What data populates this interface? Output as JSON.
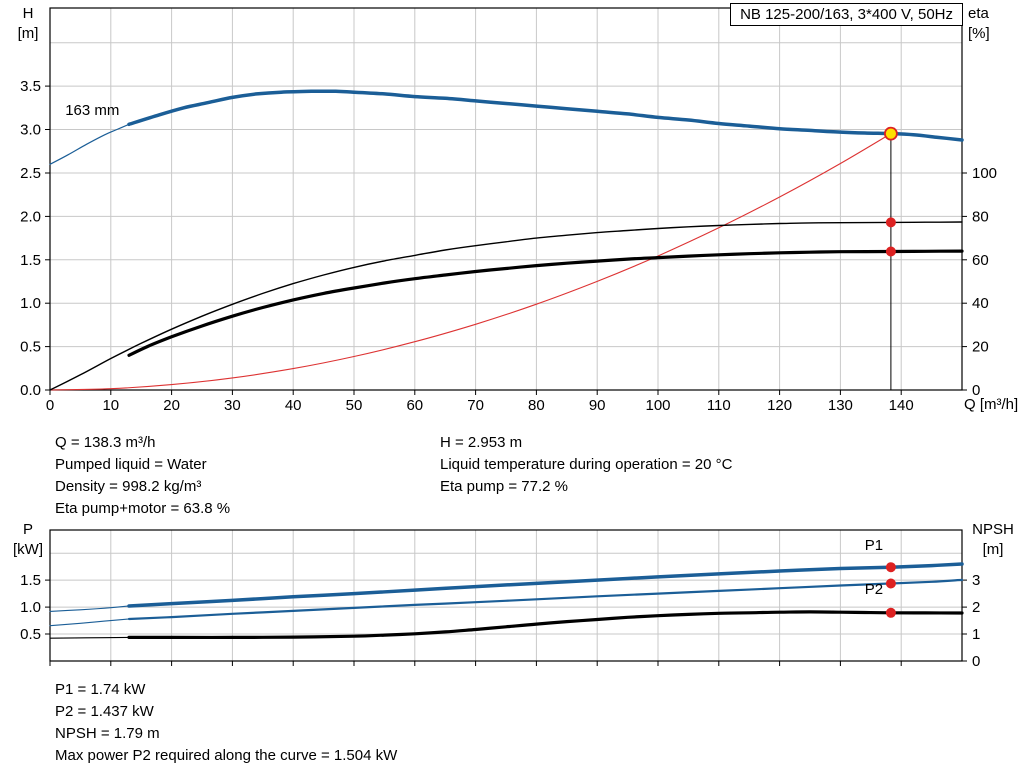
{
  "page": {
    "background": "#ffffff"
  },
  "colors": {
    "curve_blue": "#1b5e97",
    "marker_red": "#dd2222",
    "duty_yellow": "#ffe000"
  },
  "chart_data": [
    {
      "id": "hq-eta-chart",
      "type": "line",
      "title_box": "NB 125-200/163, 3*400 V, 50Hz",
      "x": {
        "min": 0,
        "max": 150,
        "ticks": [
          0,
          10,
          20,
          30,
          40,
          50,
          60,
          70,
          80,
          90,
          100,
          110,
          120,
          130,
          140
        ],
        "show_labels": true,
        "label": "Q [m³/h]"
      },
      "y_left": {
        "min": 0,
        "max": 4.4,
        "grid_step": 0.5,
        "symbol": "H",
        "unit": "[m]",
        "ticks": [
          {
            "v": 0,
            "t": "0.0"
          },
          {
            "v": 0.5,
            "t": "0.5"
          },
          {
            "v": 1,
            "t": "1.0"
          },
          {
            "v": 1.5,
            "t": "1.5"
          },
          {
            "v": 2,
            "t": "2.0"
          },
          {
            "v": 2.5,
            "t": "2.5"
          },
          {
            "v": 3,
            "t": "3.0"
          },
          {
            "v": 3.5,
            "t": "3.5"
          }
        ]
      },
      "y_right": {
        "min": 0,
        "max": 176,
        "symbol": "eta",
        "unit": "[%]",
        "ticks": [
          {
            "v": 0,
            "t": "0"
          },
          {
            "v": 20,
            "t": "20"
          },
          {
            "v": 40,
            "t": "40"
          },
          {
            "v": 60,
            "t": "60"
          },
          {
            "v": 80,
            "t": "80"
          },
          {
            "v": 100,
            "t": "100"
          }
        ]
      },
      "series": [
        {
          "name": "pump-curve-lead-thin",
          "axis": "left",
          "color": "#1b5e97",
          "width": 1.2,
          "points": [
            [
              0,
              2.6
            ],
            [
              3,
              2.71
            ],
            [
              6,
              2.83
            ],
            [
              9,
              2.94
            ],
            [
              11,
              3.0
            ],
            [
              13,
              3.06
            ]
          ]
        },
        {
          "name": "system-curve",
          "axis": "left",
          "color": "#dd3333",
          "width": 1.1,
          "points": [
            [
              0,
              0
            ],
            [
              10,
              0.015
            ],
            [
              20,
              0.062
            ],
            [
              30,
              0.139
            ],
            [
              40,
              0.247
            ],
            [
              50,
              0.386
            ],
            [
              60,
              0.556
            ],
            [
              70,
              0.757
            ],
            [
              80,
              0.988
            ],
            [
              90,
              1.251
            ],
            [
              100,
              1.544
            ],
            [
              110,
              1.868
            ],
            [
              120,
              2.223
            ],
            [
              130,
              2.609
            ],
            [
              138.3,
              2.953
            ]
          ]
        },
        {
          "name": "pump-curve-163mm",
          "axis": "left",
          "color": "#1b5e97",
          "width": 3.5,
          "points": [
            [
              13,
              3.06
            ],
            [
              18,
              3.17
            ],
            [
              22,
              3.25
            ],
            [
              26,
              3.31
            ],
            [
              30,
              3.37
            ],
            [
              34,
              3.41
            ],
            [
              38,
              3.43
            ],
            [
              43,
              3.44
            ],
            [
              47,
              3.44
            ],
            [
              50,
              3.43
            ],
            [
              55,
              3.41
            ],
            [
              60,
              3.38
            ],
            [
              65,
              3.36
            ],
            [
              70,
              3.33
            ],
            [
              75,
              3.3
            ],
            [
              80,
              3.27
            ],
            [
              85,
              3.24
            ],
            [
              90,
              3.21
            ],
            [
              95,
              3.18
            ],
            [
              100,
              3.14
            ],
            [
              105,
              3.11
            ],
            [
              110,
              3.07
            ],
            [
              115,
              3.04
            ],
            [
              120,
              3.01
            ],
            [
              125,
              2.99
            ],
            [
              130,
              2.97
            ],
            [
              134,
              2.96
            ],
            [
              138.3,
              2.953
            ],
            [
              142,
              2.94
            ],
            [
              146,
              2.91
            ],
            [
              150,
              2.88
            ]
          ]
        },
        {
          "name": "eta-pump-curve",
          "axis": "right",
          "color": "#000000",
          "width": 1.4,
          "points": [
            [
              0,
              0
            ],
            [
              5,
              7
            ],
            [
              10,
              14.5
            ],
            [
              15,
              21.5
            ],
            [
              20,
              28
            ],
            [
              25,
              34
            ],
            [
              30,
              39.5
            ],
            [
              35,
              44.5
            ],
            [
              40,
              49
            ],
            [
              45,
              53
            ],
            [
              50,
              56.5
            ],
            [
              55,
              59.5
            ],
            [
              60,
              62
            ],
            [
              65,
              64.5
            ],
            [
              70,
              66.5
            ],
            [
              75,
              68.3
            ],
            [
              80,
              70
            ],
            [
              85,
              71.3
            ],
            [
              90,
              72.5
            ],
            [
              95,
              73.5
            ],
            [
              100,
              74.4
            ],
            [
              105,
              75.2
            ],
            [
              110,
              75.8
            ],
            [
              115,
              76.3
            ],
            [
              120,
              76.7
            ],
            [
              125,
              77.0
            ],
            [
              130,
              77.1
            ],
            [
              138.3,
              77.2
            ],
            [
              144,
              77.3
            ],
            [
              150,
              77.4
            ]
          ]
        },
        {
          "name": "eta-pump-motor-curve",
          "axis": "right",
          "color": "#000000",
          "width": 3.2,
          "points": [
            [
              13,
              16
            ],
            [
              16,
              20
            ],
            [
              20,
              24.5
            ],
            [
              25,
              29.5
            ],
            [
              30,
              34
            ],
            [
              35,
              38
            ],
            [
              40,
              41.5
            ],
            [
              45,
              44.5
            ],
            [
              50,
              47
            ],
            [
              55,
              49.3
            ],
            [
              60,
              51.3
            ],
            [
              65,
              53
            ],
            [
              70,
              54.6
            ],
            [
              75,
              56
            ],
            [
              80,
              57.3
            ],
            [
              85,
              58.4
            ],
            [
              90,
              59.4
            ],
            [
              95,
              60.3
            ],
            [
              100,
              61
            ],
            [
              105,
              61.7
            ],
            [
              110,
              62.3
            ],
            [
              115,
              62.8
            ],
            [
              120,
              63.2
            ],
            [
              125,
              63.5
            ],
            [
              130,
              63.7
            ],
            [
              138.3,
              63.8
            ],
            [
              144,
              63.9
            ],
            [
              150,
              64
            ]
          ]
        }
      ],
      "duty_line": {
        "q": 138.3,
        "to_value": 2.953,
        "axis": "left",
        "color": "#000000"
      },
      "markers": [
        {
          "name": "eta-pump-marker",
          "axis": "right",
          "q": 138.3,
          "value": 77.2,
          "r": 4.5,
          "fill": "#dd2222"
        },
        {
          "name": "eta-pump-motor-marker",
          "axis": "right",
          "q": 138.3,
          "value": 63.8,
          "r": 4.5,
          "fill": "#dd2222"
        },
        {
          "name": "duty-point-marker",
          "axis": "left",
          "q": 138.3,
          "value": 2.953,
          "r": 6,
          "fill": "#ffe000",
          "stroke": "#dd2222",
          "stroke_width": 1.8
        }
      ],
      "annotations": [
        {
          "name": "impeller-diameter-label",
          "text": "163 mm",
          "q": 2.5,
          "value": 3.17,
          "axis": "left",
          "color": "#000000"
        }
      ]
    },
    {
      "id": "p-npsh-chart",
      "type": "line",
      "x": {
        "min": 0,
        "max": 150,
        "ticks": [
          0,
          10,
          20,
          30,
          40,
          50,
          60,
          70,
          80,
          90,
          100,
          110,
          120,
          130,
          140
        ],
        "show_labels": false,
        "label": ""
      },
      "y_left": {
        "min": 0,
        "max": 2.43,
        "grid_step": 0.5,
        "symbol": "P",
        "unit": "[kW]",
        "ticks": [
          {
            "v": 0.5,
            "t": "0.5"
          },
          {
            "v": 1,
            "t": "1.0"
          },
          {
            "v": 1.5,
            "t": "1.5"
          }
        ]
      },
      "y_right": {
        "min": 0,
        "max": 4.86,
        "symbol": "NPSH",
        "unit": "[m]",
        "ticks": [
          {
            "v": 0,
            "t": "0"
          },
          {
            "v": 1,
            "t": "1"
          },
          {
            "v": 2,
            "t": "2"
          },
          {
            "v": 3,
            "t": "3"
          }
        ]
      },
      "series": [
        {
          "name": "p1-curve-lead-thin",
          "axis": "left",
          "color": "#1b5e97",
          "width": 1.1,
          "points": [
            [
              0,
              0.92
            ],
            [
              5,
              0.95
            ],
            [
              9,
              0.98
            ],
            [
              13,
              1.02
            ]
          ]
        },
        {
          "name": "p2-curve-lead-thin",
          "axis": "left",
          "color": "#1b5e97",
          "width": 1.1,
          "points": [
            [
              0,
              0.655
            ],
            [
              5,
              0.7
            ],
            [
              9,
              0.74
            ],
            [
              13,
              0.78
            ]
          ]
        },
        {
          "name": "npsh-curve-lead-thin",
          "axis": "right",
          "color": "#000000",
          "width": 1.1,
          "points": [
            [
              0,
              0.845
            ],
            [
              6,
              0.86
            ],
            [
              13,
              0.875
            ]
          ]
        },
        {
          "name": "p1-curve",
          "axis": "left",
          "color": "#1b5e97",
          "width": 3.5,
          "points": [
            [
              13,
              1.02
            ],
            [
              20,
              1.065
            ],
            [
              30,
              1.125
            ],
            [
              40,
              1.19
            ],
            [
              50,
              1.25
            ],
            [
              60,
              1.315
            ],
            [
              70,
              1.38
            ],
            [
              80,
              1.44
            ],
            [
              90,
              1.5
            ],
            [
              100,
              1.56
            ],
            [
              110,
              1.615
            ],
            [
              120,
              1.67
            ],
            [
              130,
              1.715
            ],
            [
              138.3,
              1.74
            ],
            [
              145,
              1.77
            ],
            [
              150,
              1.8
            ]
          ]
        },
        {
          "name": "p2-curve",
          "axis": "left",
          "color": "#1b5e97",
          "width": 2.2,
          "points": [
            [
              13,
              0.78
            ],
            [
              20,
              0.815
            ],
            [
              30,
              0.875
            ],
            [
              40,
              0.93
            ],
            [
              50,
              0.985
            ],
            [
              60,
              1.04
            ],
            [
              70,
              1.09
            ],
            [
              80,
              1.145
            ],
            [
              90,
              1.2
            ],
            [
              100,
              1.25
            ],
            [
              110,
              1.3
            ],
            [
              120,
              1.35
            ],
            [
              130,
              1.4
            ],
            [
              138.3,
              1.437
            ],
            [
              145,
              1.47
            ],
            [
              150,
              1.504
            ]
          ]
        },
        {
          "name": "npsh-curve",
          "axis": "right",
          "color": "#000000",
          "width": 3.2,
          "points": [
            [
              13,
              0.875
            ],
            [
              20,
              0.875
            ],
            [
              30,
              0.875
            ],
            [
              40,
              0.885
            ],
            [
              50,
              0.92
            ],
            [
              55,
              0.96
            ],
            [
              60,
              1.01
            ],
            [
              65,
              1.08
            ],
            [
              70,
              1.17
            ],
            [
              75,
              1.27
            ],
            [
              80,
              1.37
            ],
            [
              85,
              1.46
            ],
            [
              90,
              1.54
            ],
            [
              95,
              1.62
            ],
            [
              100,
              1.68
            ],
            [
              105,
              1.73
            ],
            [
              110,
              1.77
            ],
            [
              115,
              1.79
            ],
            [
              120,
              1.81
            ],
            [
              125,
              1.82
            ],
            [
              130,
              1.81
            ],
            [
              134,
              1.8
            ],
            [
              138.3,
              1.79
            ],
            [
              144,
              1.785
            ],
            [
              150,
              1.78
            ]
          ]
        }
      ],
      "markers": [
        {
          "name": "p1-marker",
          "axis": "left",
          "q": 138.3,
          "value": 1.74,
          "r": 4.5,
          "fill": "#dd2222"
        },
        {
          "name": "p2-marker",
          "axis": "left",
          "q": 138.3,
          "value": 1.437,
          "r": 4.5,
          "fill": "#dd2222"
        },
        {
          "name": "npsh-marker",
          "axis": "right",
          "q": 138.3,
          "value": 1.79,
          "r": 4.5,
          "fill": "#dd2222"
        }
      ],
      "annotations": [
        {
          "name": "p1-curve-label",
          "text": "P1",
          "q": 134,
          "value": 2.06,
          "axis": "left",
          "color": "#1b5e97"
        },
        {
          "name": "p2-curve-label",
          "text": "P2",
          "q": 134,
          "value": 1.24,
          "axis": "left",
          "color": "#1b5e97"
        }
      ]
    }
  ],
  "info_top": {
    "left": [
      "Q = 138.3 m³/h",
      "Pumped liquid = Water",
      "Density = 998.2 kg/m³",
      "Eta pump+motor = 63.8 %"
    ],
    "right": [
      "H = 2.953 m",
      "Liquid temperature during operation = 20 °C",
      "Eta pump = 77.2 %"
    ]
  },
  "info_bottom": [
    "P1 = 1.74 kW",
    "P2 = 1.437 kW",
    "NPSH = 1.79 m",
    "Max power P2 required along the curve = 1.504 kW"
  ]
}
